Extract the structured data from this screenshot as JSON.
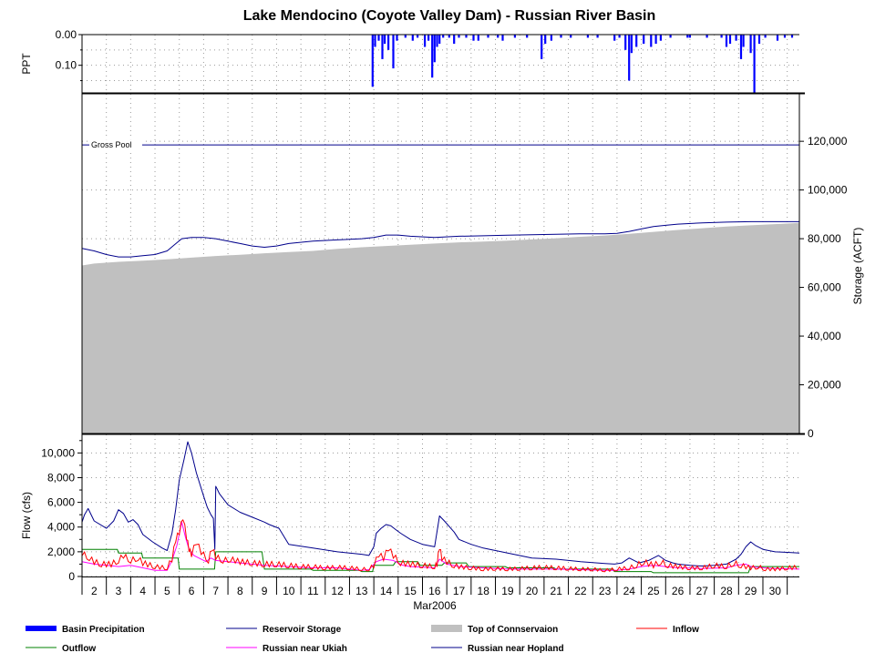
{
  "chart_data": {
    "type": "line",
    "title": "Lake Mendocino (Coyote Valley Dam) - Russian River Basin",
    "month_label": "Mar2006",
    "days": [
      2,
      3,
      4,
      5,
      6,
      7,
      8,
      9,
      10,
      11,
      12,
      13,
      14,
      15,
      16,
      17,
      18,
      19,
      20,
      21,
      22,
      23,
      24,
      25,
      26,
      27,
      28,
      29,
      30
    ],
    "x_range": [
      1.5,
      31
    ],
    "legend_position": "bottom",
    "colors": {
      "precip": "#0000ff",
      "storage": "#00008b",
      "conservation": "#c0c0c0",
      "inflow": "#ff0000",
      "outflow": "#008000",
      "ukiah": "#ff00ff",
      "hopland": "#00008b"
    },
    "precip_panel": {
      "ylabel": "PPT",
      "yticks": [
        "0.00",
        "0.10"
      ],
      "ylim": [
        0,
        0.19
      ],
      "grid": true,
      "bars": [
        [
          13.45,
          0.17
        ],
        [
          13.55,
          0.04
        ],
        [
          13.7,
          0.02
        ],
        [
          13.85,
          0.08
        ],
        [
          13.95,
          0.03
        ],
        [
          14.1,
          0.05
        ],
        [
          14.3,
          0.11
        ],
        [
          14.45,
          0.02
        ],
        [
          14.8,
          0.01
        ],
        [
          15.1,
          0.02
        ],
        [
          15.3,
          0.01
        ],
        [
          15.6,
          0.04
        ],
        [
          15.75,
          0.02
        ],
        [
          15.9,
          0.14
        ],
        [
          16.0,
          0.09
        ],
        [
          16.1,
          0.04
        ],
        [
          16.2,
          0.03
        ],
        [
          16.35,
          0.01
        ],
        [
          16.6,
          0.01
        ],
        [
          16.8,
          0.03
        ],
        [
          17.0,
          0.01
        ],
        [
          17.3,
          0.01
        ],
        [
          17.6,
          0.02
        ],
        [
          17.8,
          0.02
        ],
        [
          18.2,
          0.01
        ],
        [
          18.6,
          0.01
        ],
        [
          18.8,
          0.02
        ],
        [
          19.3,
          0.01
        ],
        [
          19.8,
          0.01
        ],
        [
          20.4,
          0.08
        ],
        [
          20.55,
          0.03
        ],
        [
          20.8,
          0.02
        ],
        [
          21.2,
          0.01
        ],
        [
          21.6,
          0.01
        ],
        [
          22.3,
          0.01
        ],
        [
          22.7,
          0.01
        ],
        [
          23.4,
          0.02
        ],
        [
          23.6,
          0.01
        ],
        [
          23.85,
          0.05
        ],
        [
          24.0,
          0.15
        ],
        [
          24.1,
          0.06
        ],
        [
          24.3,
          0.04
        ],
        [
          24.6,
          0.03
        ],
        [
          24.9,
          0.04
        ],
        [
          25.1,
          0.03
        ],
        [
          25.3,
          0.02
        ],
        [
          25.7,
          0.01
        ],
        [
          26.4,
          0.01
        ],
        [
          26.5,
          0.01
        ],
        [
          27.2,
          0.01
        ],
        [
          27.8,
          0.01
        ],
        [
          28.0,
          0.04
        ],
        [
          28.15,
          0.03
        ],
        [
          28.4,
          0.02
        ],
        [
          28.6,
          0.08
        ],
        [
          28.7,
          0.04
        ],
        [
          29.0,
          0.06
        ],
        [
          29.15,
          0.19
        ],
        [
          29.35,
          0.03
        ],
        [
          29.6,
          0.01
        ],
        [
          30.1,
          0.02
        ],
        [
          30.4,
          0.01
        ],
        [
          30.7,
          0.01
        ]
      ]
    },
    "storage_panel": {
      "ylabel": "Storage (ACFT)",
      "yticks": [
        "0",
        "20,000",
        "40,000",
        "60,000",
        "80,000",
        "100,000",
        "120,000"
      ],
      "ylim": [
        0,
        139500
      ],
      "grid": true,
      "gross_pool_label": "Gross Pool",
      "gross_pool": 118500,
      "reservoir_storage": {
        "x": [
          1.5,
          2.0,
          2.5,
          3.0,
          3.5,
          4.0,
          4.5,
          5.0,
          5.3,
          5.6,
          6.0,
          6.5,
          7.0,
          7.5,
          8.0,
          8.5,
          9.0,
          9.5,
          10,
          11,
          12,
          13,
          13.5,
          14.0,
          14.5,
          15,
          16,
          17,
          18,
          19,
          20,
          21,
          22,
          23,
          23.5,
          24,
          24.5,
          25,
          25.5,
          26,
          27,
          28,
          29,
          30,
          31
        ],
        "y": [
          76000,
          75000,
          73500,
          72500,
          72500,
          73000,
          73500,
          75000,
          77500,
          80000,
          80500,
          80500,
          80000,
          79000,
          78000,
          77000,
          76500,
          77000,
          78000,
          79000,
          79500,
          80000,
          80500,
          81500,
          81500,
          81000,
          80500,
          81000,
          81200,
          81400,
          81600,
          81800,
          82000,
          82000,
          82200,
          83000,
          84000,
          85000,
          85500,
          86000,
          86500,
          86800,
          87000,
          87000,
          87000
        ]
      },
      "top_of_conservation": {
        "x": [
          1.5,
          2,
          3,
          4,
          5,
          6,
          7,
          8,
          9,
          10,
          11,
          12,
          13,
          14,
          15,
          16,
          17,
          18,
          19,
          20,
          21,
          22,
          23,
          24,
          25,
          26,
          27,
          28,
          29,
          30,
          31
        ],
        "y": [
          69000,
          69800,
          70500,
          71000,
          71500,
          72200,
          72900,
          73400,
          74000,
          74500,
          75000,
          75800,
          76500,
          77000,
          77500,
          78000,
          78500,
          78800,
          79200,
          79700,
          80200,
          80800,
          81300,
          82000,
          82800,
          83600,
          84300,
          85000,
          85500,
          86000,
          86500
        ]
      }
    },
    "flow_panel": {
      "ylabel": "Flow (cfs)",
      "yticks": [
        "0",
        "2,000",
        "4,000",
        "6,000",
        "8,000",
        "10,000"
      ],
      "ylim": [
        0,
        11500
      ],
      "grid": true,
      "hopland": {
        "x": [
          1.5,
          1.6,
          1.75,
          2.0,
          2.5,
          2.8,
          3.0,
          3.2,
          3.4,
          3.6,
          3.8,
          4.0,
          4.4,
          4.8,
          5.0,
          5.2,
          5.35,
          5.5,
          5.7,
          5.85,
          6.0,
          6.2,
          6.5,
          6.65,
          6.8,
          6.9,
          6.96,
          7.0,
          7.05,
          7.15,
          7.5,
          8,
          8.5,
          9,
          9.2,
          9.6,
          10,
          11,
          12,
          13,
          13.3,
          13.5,
          13.6,
          13.8,
          14.0,
          14.2,
          14.4,
          14.6,
          15.0,
          15.5,
          16.0,
          16.2,
          16.4,
          16.8,
          17,
          17.5,
          18,
          19,
          20,
          21,
          22,
          23,
          23.4,
          23.7,
          24,
          24.4,
          24.8,
          25.2,
          25.5,
          25.8,
          26,
          26.5,
          27,
          27.5,
          28,
          28.4,
          28.6,
          28.8,
          29,
          29.2,
          29.5,
          30,
          30.5,
          31
        ],
        "y": [
          4400,
          5000,
          5500,
          4500,
          3900,
          4500,
          5400,
          5100,
          4400,
          4600,
          4200,
          3400,
          2800,
          2300,
          2100,
          3500,
          5400,
          7800,
          9500,
          10900,
          10000,
          8400,
          6500,
          5600,
          5000,
          4700,
          2200,
          7300,
          7100,
          6700,
          5800,
          5200,
          4800,
          4400,
          4200,
          3900,
          2600,
          2300,
          2000,
          1800,
          1700,
          2400,
          3500,
          3900,
          4200,
          4100,
          3800,
          3500,
          3000,
          2600,
          2400,
          4900,
          4500,
          3600,
          3000,
          2600,
          2300,
          1900,
          1500,
          1400,
          1200,
          1050,
          1000,
          1100,
          1500,
          1100,
          1300,
          1700,
          1300,
          1100,
          1000,
          900,
          850,
          900,
          1000,
          1400,
          1800,
          2400,
          2800,
          2500,
          2200,
          2000,
          1950,
          1900
        ]
      },
      "inflow": {
        "x": [
          1.5,
          1.8,
          2.0,
          2.3,
          2.7,
          3.0,
          3.2,
          3.5,
          3.8,
          4.0,
          4.5,
          5.0,
          5.2,
          5.35,
          5.5,
          5.65,
          5.8,
          5.9,
          6.0,
          6.2,
          6.4,
          6.7,
          6.85,
          7.0,
          7.3,
          7.6,
          8,
          8.5,
          9,
          9.5,
          10,
          10.5,
          11,
          11.5,
          12,
          12.5,
          13,
          13.3,
          13.5,
          13.7,
          13.9,
          14.1,
          14.3,
          14.6,
          15,
          15.5,
          16,
          16.1,
          16.2,
          16.3,
          16.5,
          16.8,
          17,
          17.5,
          18,
          18.5,
          19,
          19.5,
          20,
          20.5,
          21,
          21.5,
          22,
          22.5,
          23,
          23.5,
          24,
          24.3,
          24.6,
          25,
          25.3,
          25.6,
          26,
          26.5,
          27,
          27.5,
          28,
          28.3,
          28.6,
          29,
          29.3,
          29.6,
          30,
          30.5,
          31
        ],
        "y": [
          1900,
          1500,
          1200,
          1000,
          1000,
          1300,
          1700,
          1300,
          1500,
          1100,
          800,
          700,
          1400,
          3000,
          3600,
          4800,
          3200,
          2200,
          1800,
          2800,
          2000,
          1300,
          2300,
          1600,
          1300,
          1400,
          1200,
          1100,
          1000,
          1000,
          900,
          800,
          800,
          700,
          750,
          700,
          600,
          600,
          900,
          1800,
          1500,
          2300,
          1700,
          1100,
          1000,
          900,
          800,
          1000,
          2400,
          1500,
          1200,
          900,
          800,
          700,
          600,
          650,
          600,
          650,
          700,
          750,
          700,
          650,
          600,
          600,
          500,
          600,
          700,
          900,
          1200,
          900,
          1200,
          900,
          800,
          700,
          700,
          900,
          800,
          1100,
          900,
          700,
          800,
          600,
          600,
          700,
          750
        ]
      },
      "outflow": {
        "x": [
          1.5,
          2.95,
          3.0,
          3.95,
          4.0,
          5.45,
          5.5,
          6.95,
          7.0,
          8.9,
          9.0,
          10.9,
          11,
          12.9,
          13,
          13.45,
          13.5,
          14.3,
          14.4,
          15.3,
          15.4,
          16.3,
          16.4,
          17.3,
          17.4,
          18.9,
          19,
          20.9,
          21,
          23.3,
          23.4,
          24.9,
          25,
          28.9,
          29,
          31
        ],
        "y": [
          2200,
          2200,
          1900,
          1900,
          1500,
          1500,
          600,
          600,
          2000,
          2000,
          600,
          600,
          500,
          500,
          400,
          400,
          900,
          900,
          1200,
          1200,
          900,
          900,
          1100,
          1100,
          800,
          800,
          700,
          700,
          600,
          600,
          400,
          400,
          300,
          300,
          800,
          800
        ]
      },
      "ukiah": {
        "x": [
          1.5,
          2.0,
          2.5,
          3.0,
          3.5,
          4.0,
          4.5,
          5.0,
          5.2,
          5.4,
          5.6,
          5.75,
          5.9,
          6.1,
          6.3,
          6.6,
          6.8,
          7.0,
          7.5,
          8,
          9,
          10,
          11,
          12,
          13,
          13.3,
          13.6,
          13.9,
          14.3,
          14.7,
          15,
          16,
          16.2,
          16.5,
          17,
          18,
          19,
          20,
          21,
          22,
          23,
          23.5,
          24,
          24.5,
          25,
          25.5,
          26,
          27,
          28,
          28.4,
          28.8,
          29,
          29.5,
          30,
          31
        ],
        "y": [
          1200,
          1000,
          900,
          800,
          900,
          700,
          500,
          500,
          1300,
          2500,
          4400,
          3200,
          2200,
          1700,
          1500,
          1200,
          1500,
          1300,
          1200,
          1100,
          900,
          800,
          700,
          700,
          500,
          550,
          1200,
          1400,
          1300,
          900,
          800,
          700,
          1400,
          1000,
          800,
          700,
          600,
          600,
          600,
          550,
          500,
          500,
          600,
          800,
          900,
          800,
          700,
          650,
          700,
          900,
          1000,
          800,
          700,
          650,
          600
        ]
      }
    },
    "legend": [
      {
        "key": "precip",
        "label": "Basin Precipitation",
        "style": "thick"
      },
      {
        "key": "storage",
        "label": "Reservoir Storage",
        "style": "line"
      },
      {
        "key": "conservation",
        "label": "Top of Connservaion",
        "style": "band"
      },
      {
        "key": "inflow",
        "label": "Inflow",
        "style": "line"
      },
      {
        "key": "outflow",
        "label": "Outflow",
        "style": "line"
      },
      {
        "key": "ukiah",
        "label": "Russian near Ukiah",
        "style": "line"
      },
      {
        "key": "hopland",
        "label": "Russian near Hopland",
        "style": "line"
      }
    ]
  }
}
